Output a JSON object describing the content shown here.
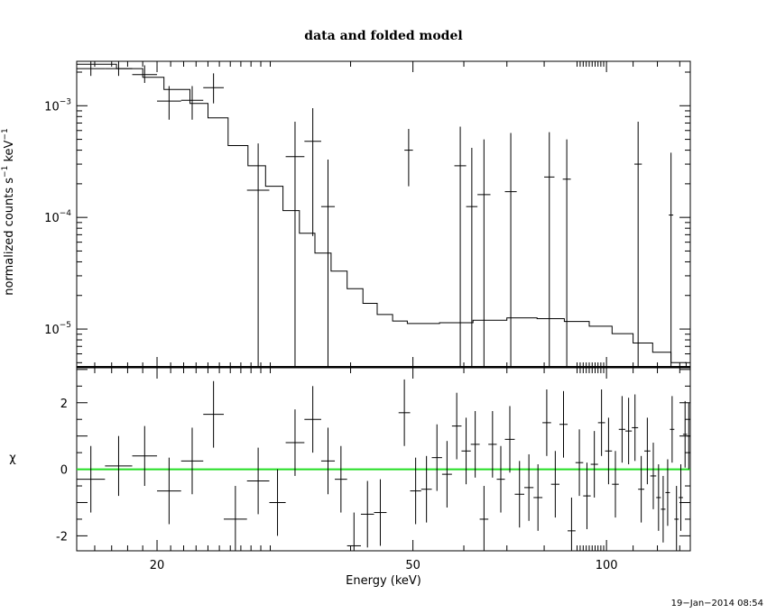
{
  "chart_data": [
    {
      "type": "scatter",
      "title": "data and folded model",
      "xlabel": "",
      "ylabel": "normalized counts s^-1 keV^-1",
      "x_scale": "log",
      "y_scale": "log",
      "xlim": [
        15,
        135
      ],
      "ylim": [
        4.5e-06,
        0.0025
      ],
      "x_ticks": [
        20,
        50,
        100
      ],
      "y_ticks": [
        {
          "value": 0.001,
          "label": "10",
          "exp": "−3"
        },
        {
          "value": 0.0001,
          "label": "10",
          "exp": "−4"
        },
        {
          "value": 1e-05,
          "label": "10",
          "exp": "−5"
        }
      ],
      "series": [
        {
          "kind": "data",
          "points": [
            {
              "x0": 15.0,
              "x1": 16.6,
              "y": 0.00215,
              "ylo": 0.00185,
              "yhi": 0.0025
            },
            {
              "x0": 16.6,
              "x1": 18.3,
              "y": 0.00215,
              "ylo": 0.00185,
              "yhi": 0.0025
            },
            {
              "x0": 18.3,
              "x1": 20.0,
              "y": 0.0019,
              "ylo": 0.0016,
              "yhi": 0.0023
            },
            {
              "x0": 20.0,
              "x1": 21.8,
              "y": 0.0011,
              "ylo": 0.00075,
              "yhi": 0.0015
            },
            {
              "x0": 21.8,
              "x1": 23.6,
              "y": 0.00112,
              "ylo": 0.00075,
              "yhi": 0.0015
            },
            {
              "x0": 23.6,
              "x1": 25.4,
              "y": 0.00145,
              "ylo": 0.00105,
              "yhi": 0.00195
            },
            {
              "x0": 27.6,
              "x1": 29.9,
              "y": 0.000175,
              "ylo": 4.5e-06,
              "yhi": 0.00046
            },
            {
              "x0": 31.7,
              "x1": 33.9,
              "y": 0.00035,
              "ylo": 4.5e-06,
              "yhi": 0.00072
            },
            {
              "x0": 33.9,
              "x1": 36.0,
              "y": 0.00048,
              "ylo": 6.8e-05,
              "yhi": 0.00095
            },
            {
              "x0": 36.0,
              "x1": 37.8,
              "y": 0.000125,
              "ylo": 4.5e-06,
              "yhi": 0.00033
            },
            {
              "x0": 48.5,
              "x1": 50.0,
              "y": 0.0004,
              "ylo": 0.00019,
              "yhi": 0.00062
            },
            {
              "x0": 58.0,
              "x1": 60.5,
              "y": 0.00029,
              "ylo": 4.5e-06,
              "yhi": 0.00065
            },
            {
              "x0": 60.5,
              "x1": 63.0,
              "y": 0.000125,
              "ylo": 4.5e-06,
              "yhi": 0.00042
            },
            {
              "x0": 63.0,
              "x1": 66.0,
              "y": 0.00016,
              "ylo": 4.5e-06,
              "yhi": 0.0005
            },
            {
              "x0": 69.5,
              "x1": 72.5,
              "y": 0.00017,
              "ylo": 4.5e-06,
              "yhi": 0.00057
            },
            {
              "x0": 80.0,
              "x1": 83.0,
              "y": 0.00023,
              "ylo": 4.5e-06,
              "yhi": 0.00058
            },
            {
              "x0": 85.5,
              "x1": 88.0,
              "y": 0.00022,
              "ylo": 4.5e-06,
              "yhi": 0.0005
            },
            {
              "x0": 110.5,
              "x1": 113.5,
              "y": 0.0003,
              "ylo": 4.5e-06,
              "yhi": 0.00072
            },
            {
              "x0": 125.0,
              "x1": 127.0,
              "y": 0.000105,
              "ylo": 4.5e-06,
              "yhi": 0.00038
            }
          ]
        },
        {
          "kind": "model",
          "steps": [
            [
              15.0,
              0.00235
            ],
            [
              17.3,
              0.00215
            ],
            [
              19.0,
              0.0018
            ],
            [
              20.5,
              0.0014
            ],
            [
              22.5,
              0.00105
            ],
            [
              24.0,
              0.00078
            ],
            [
              25.8,
              0.00044
            ],
            [
              27.7,
              0.00029
            ],
            [
              29.5,
              0.00019
            ],
            [
              31.4,
              0.000115
            ],
            [
              33.3,
              7.2e-05
            ],
            [
              35.2,
              4.8e-05
            ],
            [
              37.3,
              3.3e-05
            ],
            [
              39.5,
              2.3e-05
            ],
            [
              41.8,
              1.7e-05
            ],
            [
              44.0,
              1.35e-05
            ],
            [
              46.5,
              1.18e-05
            ],
            [
              49.0,
              1.12e-05
            ],
            [
              55.0,
              1.14e-05
            ],
            [
              62.0,
              1.2e-05
            ],
            [
              70.0,
              1.26e-05
            ],
            [
              78.0,
              1.24e-05
            ],
            [
              86.0,
              1.17e-05
            ],
            [
              94.0,
              1.06e-05
            ],
            [
              102.0,
              9.1e-06
            ],
            [
              110.0,
              7.5e-06
            ],
            [
              118.0,
              6.2e-06
            ],
            [
              126.0,
              5e-06
            ],
            [
              133.0,
              4.6e-06
            ],
            [
              135.0,
              4.5e-06
            ]
          ]
        }
      ]
    },
    {
      "type": "scatter",
      "title": "",
      "xlabel": "Energy (keV)",
      "ylabel": "χ",
      "x_scale": "log",
      "y_scale": "linear",
      "xlim": [
        15,
        135
      ],
      "ylim": [
        -2.45,
        3.05
      ],
      "x_ticks": [
        20,
        50,
        100
      ],
      "y_ticks": [
        2,
        0,
        -2
      ],
      "reference_line": {
        "y": 0,
        "color": "#22dd22"
      },
      "series": [
        {
          "kind": "residuals",
          "points": [
            {
              "x0": 15.0,
              "x1": 16.6,
              "y": -0.3,
              "err": 1.0
            },
            {
              "x0": 16.6,
              "x1": 18.3,
              "y": 0.1,
              "err": 0.9
            },
            {
              "x0": 18.3,
              "x1": 20.0,
              "y": 0.4,
              "err": 0.9
            },
            {
              "x0": 20.0,
              "x1": 21.8,
              "y": -0.65,
              "err": 1.0
            },
            {
              "x0": 21.8,
              "x1": 23.6,
              "y": 0.25,
              "err": 1.0
            },
            {
              "x0": 23.6,
              "x1": 25.4,
              "y": 1.65,
              "err": 1.0
            },
            {
              "x0": 25.4,
              "x1": 27.6,
              "y": -1.5,
              "err": 1.0
            },
            {
              "x0": 27.6,
              "x1": 29.9,
              "y": -0.35,
              "err": 1.0
            },
            {
              "x0": 29.9,
              "x1": 31.7,
              "y": -1.0,
              "err": 1.0
            },
            {
              "x0": 31.7,
              "x1": 33.9,
              "y": 0.8,
              "err": 1.0
            },
            {
              "x0": 33.9,
              "x1": 36.0,
              "y": 1.5,
              "err": 1.0
            },
            {
              "x0": 36.0,
              "x1": 37.8,
              "y": 0.25,
              "err": 1.0
            },
            {
              "x0": 37.8,
              "x1": 39.5,
              "y": -0.3,
              "err": 1.0
            },
            {
              "x0": 39.5,
              "x1": 41.5,
              "y": -2.3,
              "err": 1.0
            },
            {
              "x0": 41.5,
              "x1": 43.5,
              "y": -1.35,
              "err": 1.0
            },
            {
              "x0": 43.5,
              "x1": 45.5,
              "y": -1.3,
              "err": 1.0
            },
            {
              "x0": 47.5,
              "x1": 49.5,
              "y": 1.7,
              "err": 1.0
            },
            {
              "x0": 49.5,
              "x1": 51.5,
              "y": -0.65,
              "err": 1.0
            },
            {
              "x0": 51.5,
              "x1": 53.5,
              "y": -0.6,
              "err": 1.0
            },
            {
              "x0": 53.5,
              "x1": 55.5,
              "y": 0.35,
              "err": 1.0
            },
            {
              "x0": 55.5,
              "x1": 57.5,
              "y": -0.15,
              "err": 1.0
            },
            {
              "x0": 57.5,
              "x1": 59.5,
              "y": 1.3,
              "err": 1.0
            },
            {
              "x0": 59.5,
              "x1": 61.5,
              "y": 0.55,
              "err": 1.0
            },
            {
              "x0": 61.5,
              "x1": 63.5,
              "y": 0.75,
              "err": 1.0
            },
            {
              "x0": 63.5,
              "x1": 65.5,
              "y": -1.5,
              "err": 1.0
            },
            {
              "x0": 65.5,
              "x1": 67.5,
              "y": 0.75,
              "err": 1.0
            },
            {
              "x0": 67.5,
              "x1": 69.5,
              "y": -0.3,
              "err": 1.0
            },
            {
              "x0": 69.5,
              "x1": 72.0,
              "y": 0.9,
              "err": 1.0
            },
            {
              "x0": 72.0,
              "x1": 74.5,
              "y": -0.75,
              "err": 1.0
            },
            {
              "x0": 74.5,
              "x1": 77.0,
              "y": -0.55,
              "err": 1.0
            },
            {
              "x0": 77.0,
              "x1": 79.5,
              "y": -0.85,
              "err": 1.0
            },
            {
              "x0": 79.5,
              "x1": 82.0,
              "y": 1.4,
              "err": 1.0
            },
            {
              "x0": 82.0,
              "x1": 84.5,
              "y": -0.45,
              "err": 1.0
            },
            {
              "x0": 84.5,
              "x1": 87.0,
              "y": 1.35,
              "err": 1.0
            },
            {
              "x0": 87.0,
              "x1": 89.5,
              "y": -1.85,
              "err": 1.0
            },
            {
              "x0": 89.5,
              "x1": 92.0,
              "y": 0.2,
              "err": 1.0
            },
            {
              "x0": 92.0,
              "x1": 94.5,
              "y": -0.8,
              "err": 1.0
            },
            {
              "x0": 94.5,
              "x1": 97.0,
              "y": 0.15,
              "err": 1.0
            },
            {
              "x0": 97.0,
              "x1": 99.5,
              "y": 1.4,
              "err": 1.0
            },
            {
              "x0": 99.5,
              "x1": 102.0,
              "y": 0.55,
              "err": 1.0
            },
            {
              "x0": 102.0,
              "x1": 104.5,
              "y": -0.45,
              "err": 1.0
            },
            {
              "x0": 104.5,
              "x1": 107.0,
              "y": 1.2,
              "err": 1.0
            },
            {
              "x0": 107.0,
              "x1": 109.5,
              "y": 1.15,
              "err": 1.0
            },
            {
              "x0": 109.5,
              "x1": 112.0,
              "y": 1.25,
              "err": 1.0
            },
            {
              "x0": 112.0,
              "x1": 114.5,
              "y": -0.6,
              "err": 1.0
            },
            {
              "x0": 114.5,
              "x1": 117.0,
              "y": 0.55,
              "err": 1.0
            },
            {
              "x0": 117.0,
              "x1": 119.5,
              "y": -0.2,
              "err": 1.0
            },
            {
              "x0": 119.5,
              "x1": 121.5,
              "y": -0.85,
              "err": 1.0
            },
            {
              "x0": 121.5,
              "x1": 123.5,
              "y": -1.2,
              "err": 1.0
            },
            {
              "x0": 123.5,
              "x1": 125.5,
              "y": -0.7,
              "err": 1.0
            },
            {
              "x0": 125.5,
              "x1": 127.5,
              "y": 1.2,
              "err": 1.0
            },
            {
              "x0": 127.5,
              "x1": 129.5,
              "y": -1.5,
              "err": 1.0
            },
            {
              "x0": 129.5,
              "x1": 131.5,
              "y": -0.85,
              "err": 1.0
            },
            {
              "x0": 131.5,
              "x1": 133.5,
              "y": 1.05,
              "err": 1.0
            },
            {
              "x0": 133.5,
              "x1": 135.0,
              "y": 1.0,
              "err": 1.0
            }
          ]
        }
      ]
    }
  ],
  "timestamp": "19−Jan−2014 08:54"
}
